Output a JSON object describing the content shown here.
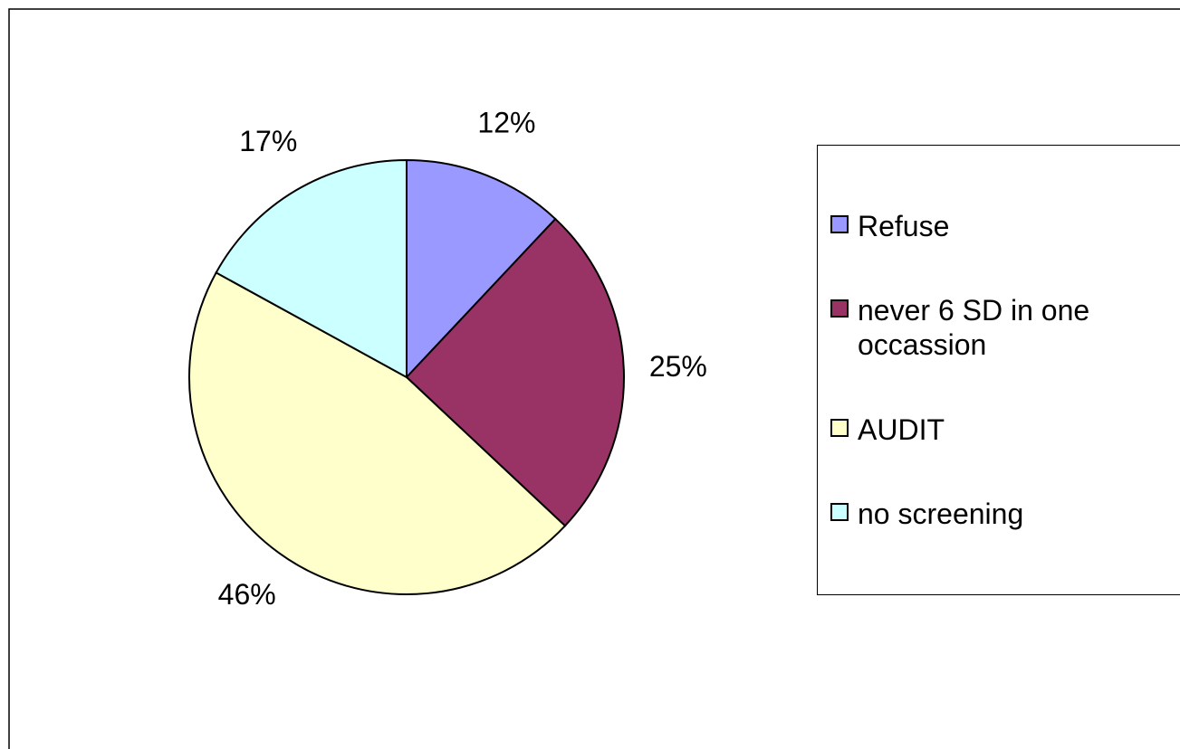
{
  "chart_data": {
    "type": "pie",
    "categories": [
      "Refuse",
      "never 6 SD in one occassion",
      "AUDIT",
      "no screening"
    ],
    "values": [
      12,
      25,
      46,
      17
    ],
    "value_labels": [
      "12%",
      "25%",
      "46%",
      "17%"
    ],
    "colors": [
      "#9999ff",
      "#993366",
      "#ffffcc",
      "#ccffff"
    ],
    "legend": "right"
  }
}
